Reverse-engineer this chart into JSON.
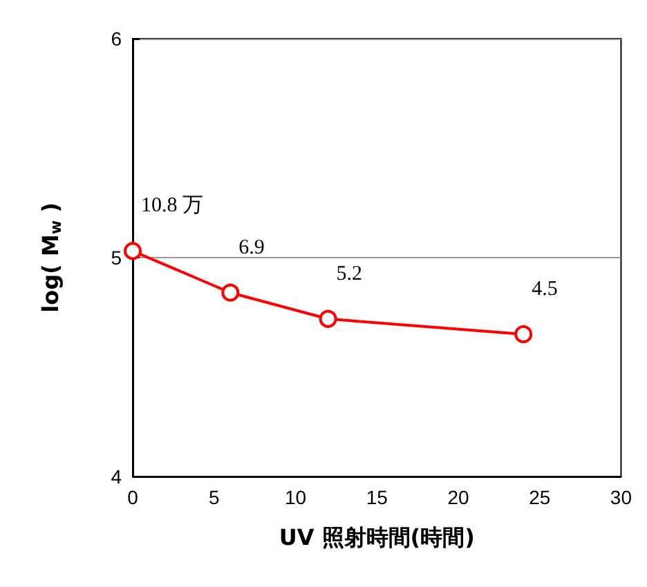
{
  "chart_data": {
    "type": "line",
    "xlabel": "UV 照射時間(時間)",
    "ylabel": "log( M$_{w}$ )",
    "x": [
      0,
      6,
      12,
      24
    ],
    "series": [
      {
        "color": "#ff0000",
        "values": [
          5.03,
          4.84,
          4.72,
          4.65
        ]
      }
    ],
    "annotations": [
      {
        "text": "10.8 万",
        "x": 0,
        "y": 5.03
      },
      {
        "text": "6.9",
        "x": 6,
        "y": 4.84
      },
      {
        "text": "5.2",
        "x": 12,
        "y": 4.72
      },
      {
        "text": "4.5",
        "x": 24,
        "y": 4.65
      }
    ],
    "xlim": [
      0,
      30
    ],
    "xticks": [
      0,
      5,
      10,
      15,
      20,
      25,
      30
    ],
    "ylim": [
      4,
      6
    ],
    "yticks": [
      4,
      5,
      6
    ],
    "grid": "y",
    "marker": "circle",
    "line_style": "solid"
  }
}
